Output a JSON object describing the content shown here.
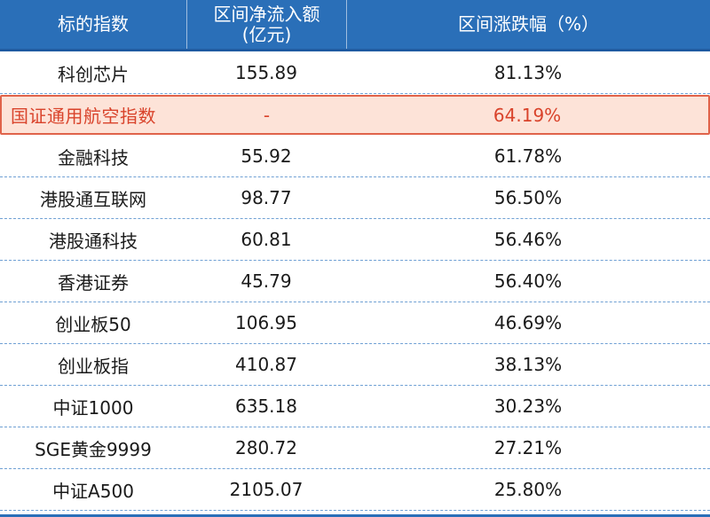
{
  "header": {
    "col1": "标的指数",
    "col2": "区间净流入额\n(亿元)",
    "col3": "区间涨跌幅（%）"
  },
  "rows": [
    {
      "name": "科创芯片",
      "flow": "155.89",
      "change": "81.13%"
    },
    {
      "name": "国证通用航空指数",
      "flow": "-",
      "change": "64.19%",
      "highlight": true
    },
    {
      "name": "金融科技",
      "flow": "55.92",
      "change": "61.78%"
    },
    {
      "name": "港股通互联网",
      "flow": "98.77",
      "change": "56.50%"
    },
    {
      "name": "港股通科技",
      "flow": "60.81",
      "change": "56.46%"
    },
    {
      "name": "香港证券",
      "flow": "45.79",
      "change": "56.40%"
    },
    {
      "name": "创业板50",
      "flow": "106.95",
      "change": "46.69%"
    },
    {
      "name": "创业板指",
      "flow": "410.87",
      "change": "38.13%"
    },
    {
      "name": "中证1000",
      "flow": "635.18",
      "change": "30.23%"
    },
    {
      "name": "SGE黄金9999",
      "flow": "280.72",
      "change": "27.21%"
    },
    {
      "name": "中证A500",
      "flow": "2105.07",
      "change": "25.80%"
    }
  ],
  "colors": {
    "header_bg": "#2a6fb8",
    "highlight_bg": "#fde3d8",
    "highlight_border": "#e0634a",
    "highlight_text": "#d9432b"
  }
}
